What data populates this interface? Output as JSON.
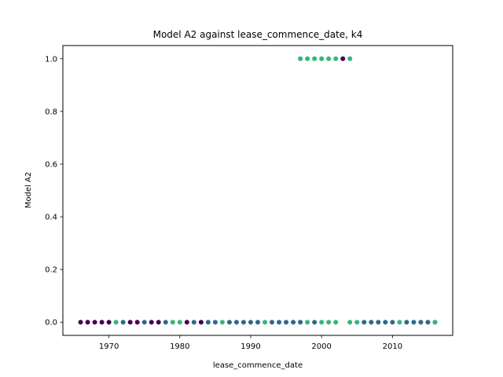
{
  "chart_data": {
    "type": "scatter",
    "title": "Model A2 against lease_commence_date, k4",
    "xlabel": "lease_commence_date",
    "ylabel": "Model A2",
    "xlim": [
      1963.5,
      2018.5
    ],
    "ylim": [
      -0.05,
      1.05
    ],
    "xticks": [
      1970,
      1980,
      1990,
      2000,
      2010
    ],
    "xtick_labels": [
      "1970",
      "1980",
      "1990",
      "2000",
      "2010"
    ],
    "yticks": [
      0.0,
      0.2,
      0.4,
      0.6,
      0.8,
      1.0
    ],
    "ytick_labels": [
      "0.0",
      "0.2",
      "0.4",
      "0.6",
      "0.8",
      "1.0"
    ],
    "grid": false,
    "legend": "none",
    "colors": {
      "cluster_0": "#440154",
      "cluster_1": "#31688e",
      "cluster_2": "#35b779"
    },
    "series": [
      {
        "color": "#440154",
        "x": [
          1966,
          1967,
          1968,
          1969,
          1970,
          1973,
          1974,
          1976,
          1977,
          1981,
          1983,
          2003
        ],
        "y": [
          0,
          0,
          0,
          0,
          0,
          0,
          0,
          0,
          0,
          0,
          0,
          1
        ]
      },
      {
        "color": "#31688e",
        "x": [
          1972,
          1975,
          1978,
          1982,
          1984,
          1985,
          1987,
          1988,
          1989,
          1990,
          1991,
          1993,
          1994,
          1995,
          1996,
          1997,
          1999,
          2006,
          2007,
          2008,
          2009,
          2010,
          2012,
          2013,
          2014,
          2015,
          2016
        ],
        "y": [
          0,
          0,
          0,
          0,
          0,
          0,
          0,
          0,
          0,
          0,
          0,
          0,
          0,
          0,
          0,
          0,
          0,
          0,
          0,
          0,
          0,
          0,
          0,
          0,
          0,
          0,
          0
        ]
      },
      {
        "color": "#35b779",
        "x": [
          1971,
          1979,
          1980,
          1986,
          1992,
          1998,
          2000,
          2001,
          2002,
          2004,
          2005,
          2011,
          2016,
          1997,
          1998,
          1999,
          2000,
          2001,
          2002,
          2004
        ],
        "y": [
          0,
          0,
          0,
          0,
          0,
          0,
          0,
          0,
          0,
          0,
          0,
          0,
          0,
          1,
          1,
          1,
          1,
          1,
          1,
          1
        ]
      }
    ]
  }
}
